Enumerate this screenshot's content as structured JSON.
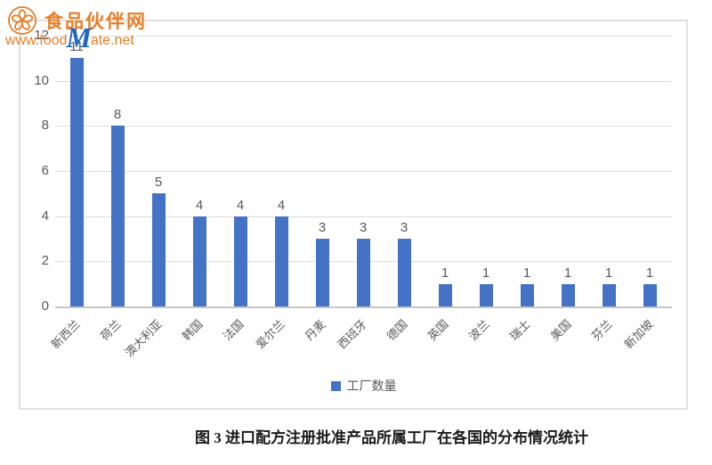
{
  "logo": {
    "site_name": "食品伙伴网",
    "url_prefix": "www.food",
    "url_m": "M",
    "url_suffix": "ate.net",
    "orange": "#e87e26",
    "m_blue": "#2266be"
  },
  "chart_data": {
    "type": "bar",
    "title": "",
    "categories": [
      "新西兰",
      "荷兰",
      "澳大利亚",
      "韩国",
      "法国",
      "爱尔兰",
      "丹麦",
      "西班牙",
      "德国",
      "英国",
      "波兰",
      "瑞士",
      "美国",
      "芬兰",
      "新加坡"
    ],
    "values": [
      11,
      8,
      5,
      4,
      4,
      4,
      3,
      3,
      3,
      1,
      1,
      1,
      1,
      1,
      1
    ],
    "data_labels": [
      11,
      8,
      5,
      4,
      4,
      4,
      3,
      3,
      3,
      1,
      1,
      1,
      1,
      1,
      1
    ],
    "legend": [
      "工厂数量"
    ],
    "legend_position": "bottom",
    "xlabel": "",
    "ylabel": "",
    "ylim": [
      0,
      12
    ],
    "yticks": [
      0,
      2,
      4,
      6,
      8,
      10,
      12
    ],
    "grid": true,
    "bar_color": "#4472c4",
    "gridline_color": "#dcdcdc",
    "text_color": "#595959"
  },
  "caption": "图 3  进口配方注册批准产品所属工厂在各国的分布情况统计"
}
